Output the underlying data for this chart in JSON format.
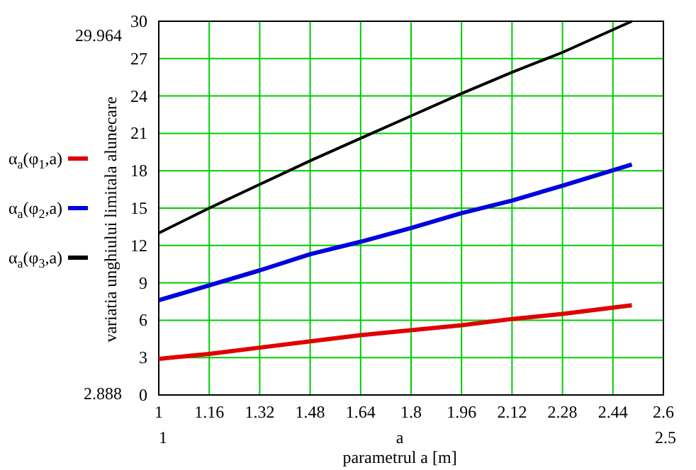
{
  "chart_data": {
    "type": "line",
    "ylabel": "variatia unghiului limitala alunecare",
    "xlabel": "parametrul a [m]",
    "x": [
      1,
      1.16,
      1.32,
      1.48,
      1.64,
      1.8,
      1.96,
      2.12,
      2.28,
      2.5
    ],
    "series": [
      {
        "name": "α$_{a}$(φ$_{1}$,a)",
        "color": "#e00000",
        "values": [
          2.9,
          3.3,
          3.8,
          4.3,
          4.8,
          5.2,
          5.6,
          6.1,
          6.5,
          7.2
        ]
      },
      {
        "name": "α$_{a}$(φ$_{2}$,a)",
        "color": "#0000e0",
        "values": [
          7.6,
          8.8,
          10.0,
          11.3,
          12.3,
          13.4,
          14.6,
          15.6,
          16.8,
          18.5
        ]
      },
      {
        "name": "α$_{a}$(φ$_{3}$,a)",
        "color": "#000000",
        "values": [
          13.0,
          15.0,
          16.9,
          18.8,
          20.6,
          22.4,
          24.2,
          25.9,
          27.5,
          30.0
        ]
      }
    ],
    "xlim": [
      1,
      2.6
    ],
    "xticks": [
      1,
      1.16,
      1.32,
      1.48,
      1.64,
      1.8,
      1.96,
      2.12,
      2.28,
      2.44,
      2.6
    ],
    "ylim": [
      0,
      30
    ],
    "yticks": [
      0,
      3,
      6,
      9,
      12,
      15,
      18,
      21,
      24,
      27,
      30
    ],
    "grid": true,
    "legend": "left",
    "line_style": "solid",
    "marker": "none",
    "annotations": [
      "29.964",
      "2.888",
      "1",
      "2.5",
      "a"
    ]
  }
}
